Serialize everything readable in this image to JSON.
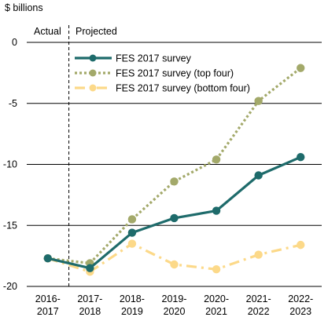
{
  "chart_data": {
    "type": "line",
    "ylabel": "$ billions",
    "ylim": [
      -20,
      0
    ],
    "yticks": [
      0,
      -5,
      -10,
      -15,
      -20
    ],
    "grid": "horizontal",
    "legend_position": "top-center",
    "categories": [
      [
        "2016-",
        "2017"
      ],
      [
        "2017-",
        "2018"
      ],
      [
        "2018-",
        "2019"
      ],
      [
        "2019-",
        "2020"
      ],
      [
        "2020-",
        "2021"
      ],
      [
        "2021-",
        "2022"
      ],
      [
        "2022-",
        "2023"
      ]
    ],
    "annotations": {
      "actual": "Actual",
      "projected": "Projected"
    },
    "divider_after_category": 0,
    "series": [
      {
        "name": "FES 2017 survey",
        "color": "#1e6b6b",
        "style": "solid",
        "values": [
          -17.7,
          -18.5,
          -15.6,
          -14.4,
          -13.8,
          -10.9,
          -9.4
        ]
      },
      {
        "name": "FES 2017 survey (top four)",
        "color": "#a3a96a",
        "style": "dotted",
        "values": [
          -17.7,
          -18.1,
          -14.5,
          -11.4,
          -9.6,
          -4.8,
          -2.1
        ]
      },
      {
        "name": "FES 2017 survey (bottom four)",
        "color": "#fcd989",
        "style": "dashdot",
        "values": [
          -17.7,
          -18.8,
          -16.5,
          -18.2,
          -18.6,
          -17.4,
          -16.6
        ]
      }
    ]
  }
}
